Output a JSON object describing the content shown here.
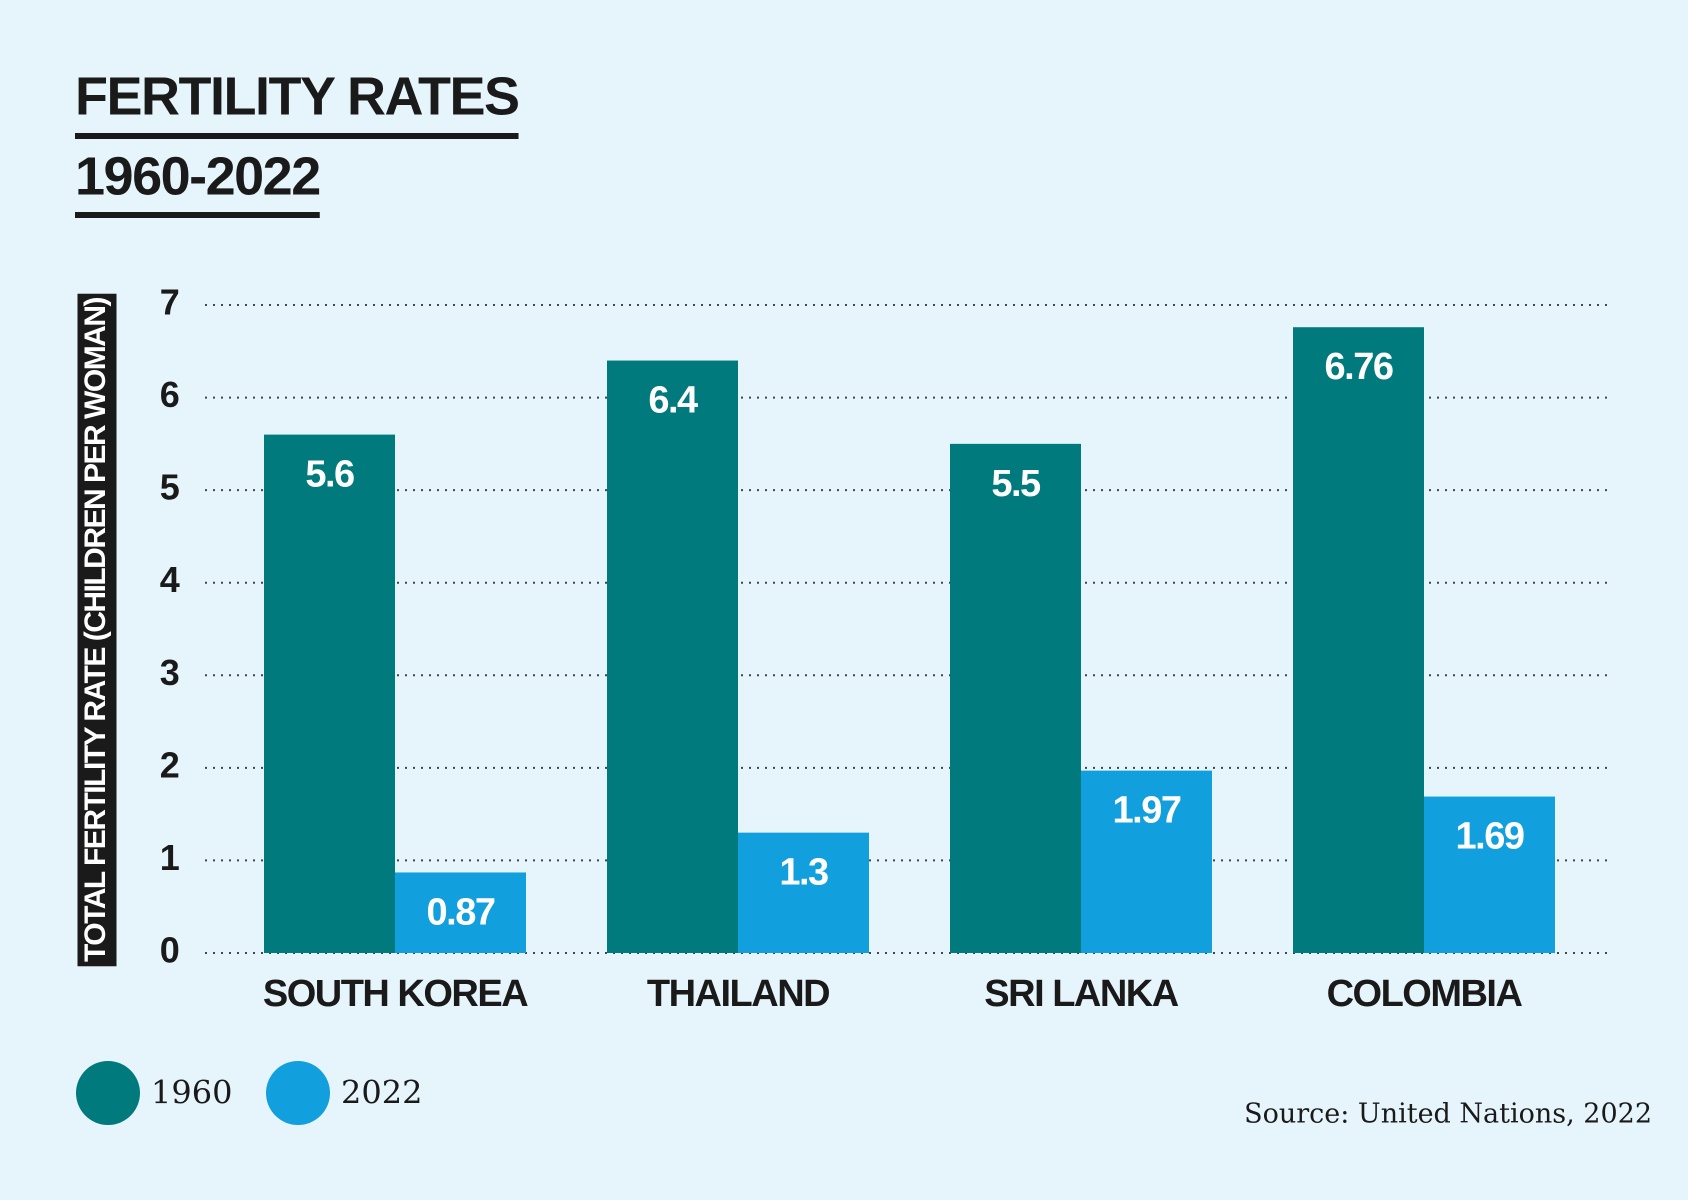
{
  "chart_data": {
    "type": "bar",
    "title": "FERTILITY RATES",
    "subtitle": "1960-2022",
    "y_label": "TOTAL FERTILITY RATE (CHILDREN PER WOMAN)",
    "categories": [
      "SOUTH KOREA",
      "THAILAND",
      "SRI LANKA",
      "COLOMBIA"
    ],
    "series": [
      {
        "name": "1960",
        "color": "#007a7d",
        "values": [
          5.6,
          6.4,
          5.5,
          6.76
        ]
      },
      {
        "name": "2022",
        "color": "#129fdd",
        "values": [
          0.87,
          1.3,
          1.97,
          1.69
        ]
      }
    ],
    "ylim": [
      0,
      7
    ],
    "yticks": [
      0,
      1,
      2,
      3,
      4,
      5,
      6,
      7
    ],
    "grid": true,
    "legend": "bottom-left",
    "source": "Source: United Nations, 2022"
  }
}
